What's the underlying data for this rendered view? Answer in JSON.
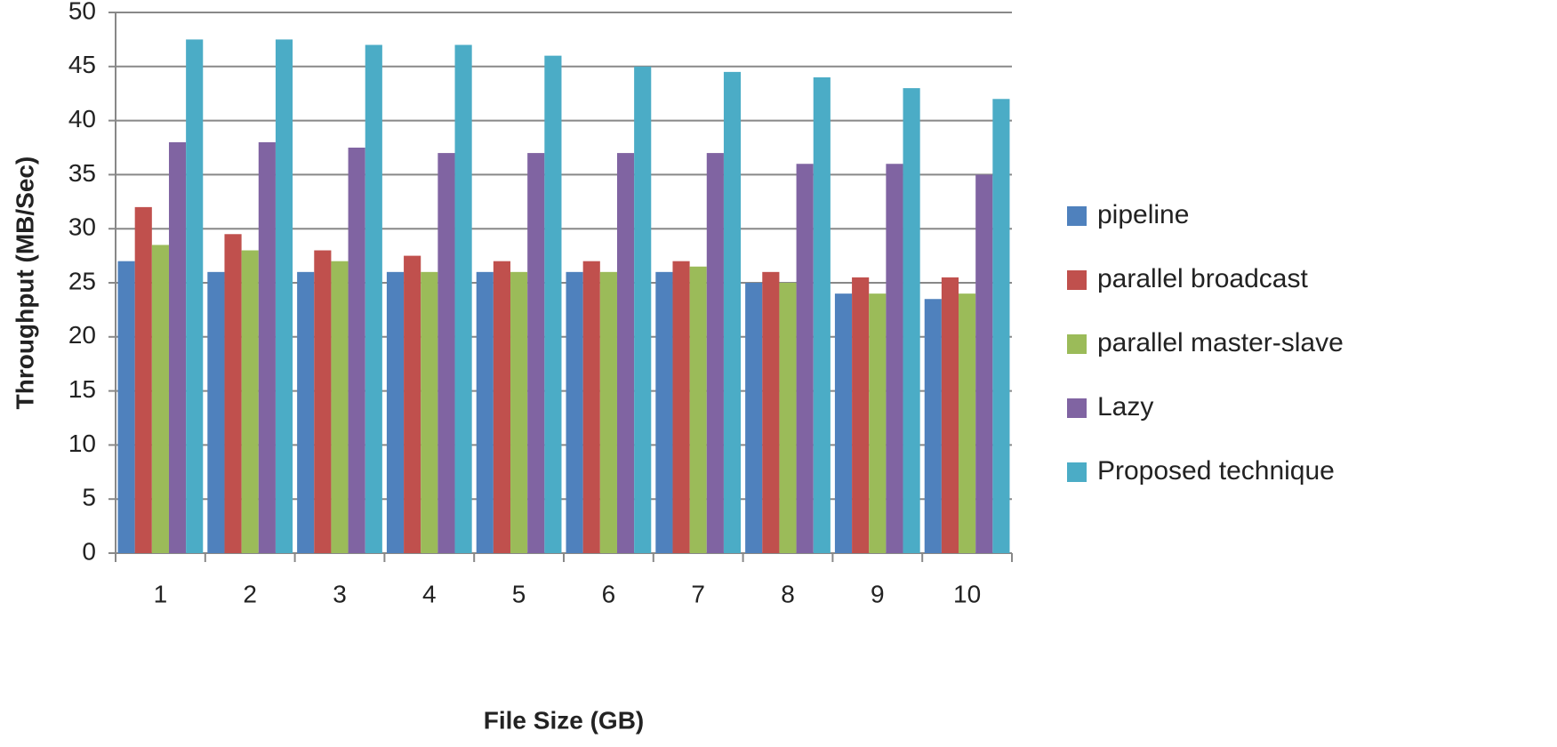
{
  "chart_data": {
    "type": "bar",
    "x_label": "File Size (GB)",
    "y_label": "Throughput  (MB/Sec)",
    "categories": [
      "1",
      "2",
      "3",
      "4",
      "5",
      "6",
      "7",
      "8",
      "9",
      "10"
    ],
    "series": [
      {
        "name": "pipeline",
        "color": "#4f81bd",
        "values": [
          27,
          26,
          26,
          26,
          26,
          26,
          26,
          25,
          24,
          23.5
        ]
      },
      {
        "name": "parallel broadcast",
        "color": "#c0504d",
        "values": [
          32,
          29.5,
          28,
          27.5,
          27,
          27,
          27,
          26,
          25.5,
          25.5
        ]
      },
      {
        "name": "parallel master-slave",
        "color": "#9bbb59",
        "values": [
          28.5,
          28,
          27,
          26,
          26,
          26,
          26.5,
          25,
          24,
          24
        ]
      },
      {
        "name": "Lazy",
        "color": "#8064a2",
        "values": [
          38,
          38,
          37.5,
          37,
          37,
          37,
          37,
          36,
          36,
          35
        ]
      },
      {
        "name": "Proposed technique",
        "color": "#4bacc6",
        "values": [
          47.5,
          47.5,
          47,
          47,
          46,
          45,
          44.5,
          44,
          43,
          42
        ]
      }
    ],
    "ylim": [
      0,
      50
    ],
    "yticks": [
      0,
      5,
      10,
      15,
      20,
      25,
      30,
      35,
      40,
      45,
      50
    ],
    "grid": true,
    "legend": "right"
  }
}
